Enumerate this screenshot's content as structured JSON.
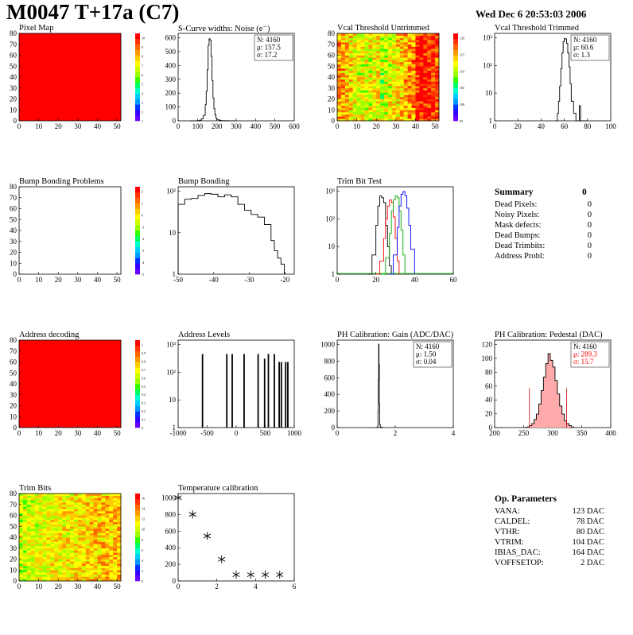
{
  "header": {
    "title": "M0047 T+17a (C7)",
    "date": "Wed Dec  6 20:53:03 2006"
  },
  "panels": [
    {
      "id": "pixel-map",
      "title": "Pixel Map",
      "kind": "map2d",
      "fill": "uniform",
      "x_ticks": [
        "0",
        "10",
        "20",
        "30",
        "40",
        "50"
      ],
      "y_ticks": [
        "0",
        "10",
        "20",
        "30",
        "40",
        "50",
        "60",
        "70",
        "80"
      ],
      "zscale": [
        "1",
        "2",
        "3",
        "4",
        "5",
        "6",
        "7",
        "8",
        "9",
        "10"
      ]
    },
    {
      "id": "scurve-noise",
      "title": "S-Curve widths: Noise (e⁻)",
      "kind": "hist",
      "x_ticks": [
        "0",
        "100",
        "200",
        "300",
        "400",
        "500",
        "600"
      ],
      "y_ticks": [
        "0",
        "100",
        "200",
        "300",
        "400",
        "500",
        "600"
      ],
      "stats": [
        "N: 4160",
        "μ: 157.5",
        "σ: 17.2"
      ]
    },
    {
      "id": "vcal-untrimmed",
      "title": "Vcal Threshold Untrimmed",
      "kind": "map2d",
      "fill": "noise",
      "x_ticks": [
        "0",
        "10",
        "20",
        "30",
        "40",
        "50"
      ],
      "y_ticks": [
        "0",
        "10",
        "20",
        "30",
        "40",
        "50",
        "60",
        "70",
        "80"
      ],
      "zscale": [
        "95",
        "100",
        "105",
        "110",
        "115",
        "120"
      ]
    },
    {
      "id": "vcal-trimmed",
      "title": "Vcal Threshold Trimmed",
      "kind": "hist",
      "x_ticks": [
        "0",
        "20",
        "40",
        "60",
        "80",
        "100"
      ],
      "y_ticks": [
        "1",
        "10",
        "10²",
        "10³"
      ],
      "stats": [
        "N: 4160",
        "μ: 60.6",
        "σ:  1.3"
      ]
    },
    {
      "id": "bump-problems",
      "title": "Bump Bonding Problems",
      "kind": "map2d",
      "fill": "empty",
      "x_ticks": [
        "0",
        "10",
        "20",
        "30",
        "40",
        "50"
      ],
      "y_ticks": [
        "0",
        "10",
        "20",
        "30",
        "40",
        "50",
        "60",
        "70",
        "80"
      ],
      "zscale": [
        "-5",
        "-4",
        "-3",
        "-2",
        "-1",
        "0",
        "1",
        "2"
      ]
    },
    {
      "id": "bump-bonding",
      "title": "Bump Bonding",
      "kind": "hist",
      "x_ticks": [
        "-50",
        "-40",
        "-30",
        "-20"
      ],
      "y_ticks": [
        "1",
        "10",
        "10²"
      ]
    },
    {
      "id": "trim-bit-test",
      "title": "Trim Bit Test",
      "kind": "hist",
      "x_ticks": [
        "0",
        "20",
        "40",
        "60"
      ],
      "y_ticks": [
        "1",
        "10",
        "10²",
        "10³"
      ]
    },
    {
      "id": "address-decoding",
      "title": "Address decoding",
      "kind": "map2d",
      "fill": "uniform",
      "x_ticks": [
        "0",
        "10",
        "20",
        "30",
        "40",
        "50"
      ],
      "y_ticks": [
        "0",
        "10",
        "20",
        "30",
        "40",
        "50",
        "60",
        "70",
        "80"
      ],
      "zscale": [
        "0",
        "0.1",
        "0.2",
        "0.3",
        "0.4",
        "0.5",
        "0.6",
        "0.7",
        "0.8",
        "0.9",
        "1"
      ]
    },
    {
      "id": "address-levels",
      "title": "Address Levels",
      "kind": "hist",
      "x_ticks": [
        "-1000",
        "-500",
        "0",
        "500",
        "1000"
      ],
      "y_ticks": [
        "1",
        "10",
        "10²",
        "10³"
      ]
    },
    {
      "id": "ph-gain",
      "title": "PH Calibration: Gain (ADC/DAC)",
      "kind": "hist",
      "x_ticks": [
        "0",
        "2",
        "4"
      ],
      "y_ticks": [
        "0",
        "200",
        "400",
        "600",
        "800",
        "1000"
      ],
      "stats": [
        "N: 4160",
        "μ: 1.50",
        "σ: 0.04"
      ]
    },
    {
      "id": "ph-pedestal",
      "title": "PH Calibration: Pedestal (DAC)",
      "kind": "hist",
      "x_ticks": [
        "200",
        "250",
        "300",
        "350",
        "400"
      ],
      "y_ticks": [
        "0",
        "20",
        "40",
        "60",
        "80",
        "100",
        "120"
      ],
      "stats": [
        "N: 4160",
        "μ: 289.3",
        "σ: 15.7"
      ]
    },
    {
      "id": "trim-bits",
      "title": "Trim Bits",
      "kind": "map2d",
      "fill": "trim",
      "x_ticks": [
        "0",
        "10",
        "20",
        "30",
        "40",
        "50"
      ],
      "y_ticks": [
        "0",
        "10",
        "20",
        "30",
        "40",
        "50",
        "60",
        "70",
        "80"
      ],
      "zscale": [
        "0",
        "2",
        "4",
        "6",
        "8",
        "10",
        "12",
        "14",
        "16"
      ]
    },
    {
      "id": "temperature-calibration",
      "title": "Temperature calibration",
      "kind": "scatter",
      "x_ticks": [
        "0",
        "2",
        "4",
        "6"
      ],
      "y_ticks": [
        "0",
        "200",
        "400",
        "600",
        "800",
        "1000"
      ]
    }
  ],
  "chart_data": [
    {
      "id": "scurve-noise",
      "type": "line",
      "xlim": [
        0,
        600
      ],
      "ylim": [
        0,
        650
      ],
      "x": [
        60,
        80,
        100,
        110,
        120,
        130,
        140,
        145,
        150,
        155,
        160,
        165,
        170,
        175,
        180,
        185,
        190,
        195,
        200,
        210,
        220,
        230,
        240,
        260,
        300
      ],
      "y": [
        0,
        0,
        2,
        5,
        15,
        40,
        120,
        220,
        380,
        560,
        610,
        600,
        480,
        300,
        170,
        90,
        45,
        20,
        10,
        5,
        2,
        1,
        1,
        0,
        0
      ]
    },
    {
      "id": "vcal-trimmed",
      "type": "line",
      "scale": "log",
      "xlim": [
        0,
        100
      ],
      "ylim": [
        0.5,
        1500
      ],
      "x": [
        52,
        54,
        55,
        56,
        57,
        58,
        59,
        60,
        61,
        62,
        63,
        64,
        65,
        66,
        68,
        70,
        72,
        73,
        74,
        80
      ],
      "y": [
        0.5,
        1,
        3,
        12,
        60,
        250,
        700,
        950,
        900,
        600,
        250,
        70,
        15,
        3,
        1,
        0.5,
        0.5,
        2,
        0.5,
        0.5
      ]
    },
    {
      "id": "bump-bonding",
      "type": "line",
      "scale": "log",
      "xlim": [
        -50,
        -15
      ],
      "ylim": [
        1,
        400
      ],
      "x": [
        -50,
        -48,
        -46,
        -44,
        -42,
        -40,
        -38,
        -36,
        -34,
        -32,
        -30,
        -28,
        -26,
        -24,
        -22,
        -21,
        -20,
        -19,
        -18
      ],
      "y": [
        120,
        170,
        180,
        220,
        250,
        240,
        200,
        230,
        200,
        120,
        80,
        60,
        50,
        30,
        10,
        5,
        3,
        2,
        1
      ]
    },
    {
      "id": "trim-bit-test",
      "type": "line",
      "scale": "log",
      "xlim": [
        0,
        60
      ],
      "ylim": [
        1,
        1500
      ],
      "series": [
        {
          "color": "#000000",
          "x": [
            16,
            18,
            20,
            21,
            22,
            23,
            24,
            25,
            26,
            27,
            28
          ],
          "y": [
            1,
            5,
            60,
            300,
            700,
            600,
            400,
            60,
            10,
            2,
            1
          ]
        },
        {
          "color": "#ff0000",
          "x": [
            20,
            22,
            24,
            25,
            26,
            27,
            28,
            29,
            30,
            31,
            32
          ],
          "y": [
            1,
            3,
            20,
            100,
            300,
            500,
            400,
            120,
            20,
            3,
            1
          ]
        },
        {
          "color": "#00aa00",
          "x": [
            23,
            25,
            27,
            28,
            29,
            30,
            31,
            32,
            33,
            34,
            35
          ],
          "y": [
            1,
            4,
            30,
            200,
            500,
            700,
            600,
            200,
            40,
            5,
            1
          ]
        },
        {
          "color": "#0000ff",
          "x": [
            27,
            29,
            31,
            32,
            33,
            34,
            35,
            36,
            37,
            38,
            40
          ],
          "y": [
            1,
            5,
            50,
            300,
            800,
            1000,
            700,
            250,
            60,
            8,
            1
          ]
        }
      ]
    },
    {
      "id": "address-levels",
      "type": "bar",
      "scale": "log",
      "xlim": [
        -1150,
        1000
      ],
      "ylim": [
        0.5,
        1000
      ],
      "x": [
        -700,
        -250,
        -150,
        70,
        330,
        450,
        520,
        630,
        720,
        760,
        840,
        880
      ],
      "values": [
        300,
        300,
        300,
        300,
        300,
        200,
        300,
        300,
        150,
        150,
        150,
        150
      ]
    },
    {
      "id": "ph-gain",
      "type": "line",
      "xlim": [
        -1,
        6
      ],
      "ylim": [
        0,
        1100
      ],
      "x": [
        1.3,
        1.4,
        1.44,
        1.46,
        1.48,
        1.5,
        1.52,
        1.54,
        1.56,
        1.6,
        1.7
      ],
      "y": [
        0,
        2,
        20,
        200,
        600,
        1050,
        800,
        300,
        40,
        5,
        0
      ]
    },
    {
      "id": "ph-pedestal",
      "type": "line",
      "xlim": [
        175,
        425
      ],
      "ylim": [
        0,
        130
      ],
      "x": [
        240,
        245,
        250,
        255,
        260,
        265,
        270,
        275,
        280,
        285,
        290,
        295,
        300,
        305,
        310,
        315,
        320,
        325,
        330,
        335,
        340,
        345
      ],
      "y": [
        0,
        1,
        3,
        6,
        12,
        20,
        35,
        55,
        75,
        95,
        110,
        100,
        90,
        70,
        50,
        32,
        20,
        10,
        6,
        3,
        1,
        0
      ],
      "markers": [
        250,
        330
      ]
    },
    {
      "id": "temperature-calibration",
      "type": "scatter",
      "xlim": [
        0,
        8
      ],
      "ylim": [
        0,
        1050
      ],
      "x": [
        0,
        1,
        2,
        3,
        4,
        5,
        6,
        7
      ],
      "y": [
        1000,
        800,
        540,
        260,
        75,
        75,
        75,
        75
      ]
    }
  ],
  "summary": {
    "title": "Summary",
    "total": "0",
    "rows": [
      {
        "label": "Dead Pixels:",
        "value": "0"
      },
      {
        "label": "Noisy Pixels:",
        "value": "0"
      },
      {
        "label": "Mask defects:",
        "value": "0"
      },
      {
        "label": "Dead Bumps:",
        "value": "0"
      },
      {
        "label": "Dead Trimbits:",
        "value": "0"
      },
      {
        "label": "Address Probl:",
        "value": "0"
      }
    ]
  },
  "op_parameters": {
    "title": "Op. Parameters",
    "rows": [
      {
        "label": "VANA:",
        "value": "123 DAC"
      },
      {
        "label": "CALDEL:",
        "value": "78 DAC"
      },
      {
        "label": "VTHR:",
        "value": "80 DAC"
      },
      {
        "label": "VTRIM:",
        "value": "104 DAC"
      },
      {
        "label": "IBIAS_DAC:",
        "value": "164 DAC"
      },
      {
        "label": "VOFFSETOP:",
        "value": "2 DAC"
      }
    ]
  },
  "colors": {
    "pixel_fill": "#ff0000",
    "pedestal_fill": "#ffaaaa",
    "stats_red": "#ff0000"
  }
}
